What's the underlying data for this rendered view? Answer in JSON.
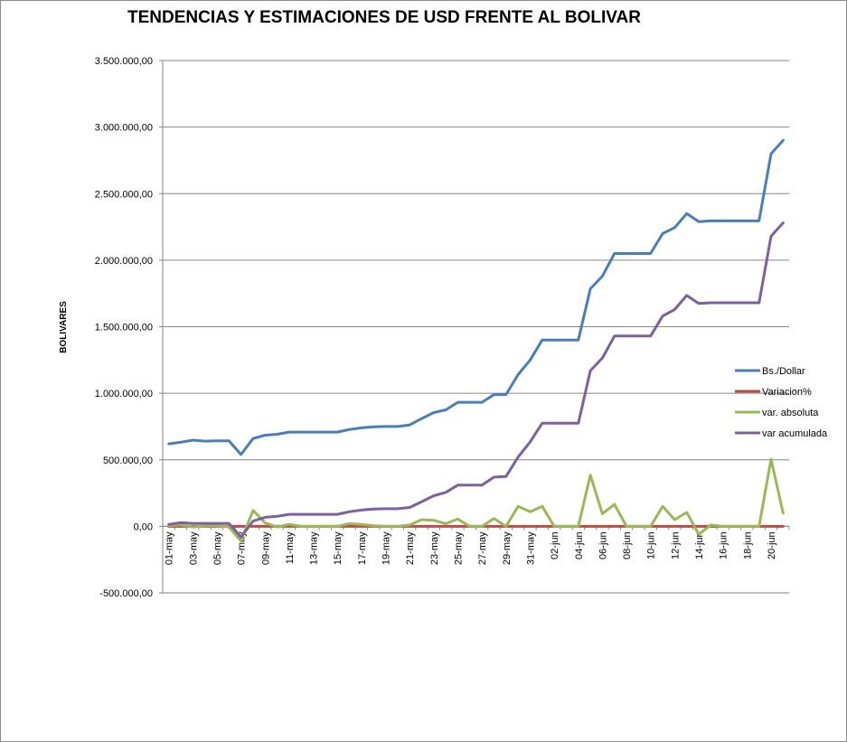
{
  "chart_data": {
    "type": "line",
    "title": "TENDENCIAS Y ESTIMACIONES DE  USD FRENTE AL BOLIVAR",
    "ylabel": "BOLIVARES",
    "ylim": [
      -500000,
      3500000
    ],
    "ytick_values": [
      -500000,
      0,
      500000,
      1000000,
      1500000,
      2000000,
      2500000,
      3000000,
      3500000
    ],
    "ytick_labels": [
      "-500.000,00",
      "0,00",
      "500.000,00",
      "1.000.000,00",
      "1.500.000,00",
      "2.000.000,00",
      "2.500.000,00",
      "3.000.000,00",
      "3.500.000,00"
    ],
    "grid": true,
    "legend_position": "right",
    "categories": [
      "01-may",
      "02-may",
      "03-may",
      "04-may",
      "05-may",
      "06-may",
      "07-may",
      "08-may",
      "09-may",
      "10-may",
      "11-may",
      "12-may",
      "13-may",
      "14-may",
      "15-may",
      "16-may",
      "17-may",
      "18-may",
      "19-may",
      "20-may",
      "21-may",
      "22-may",
      "23-may",
      "24-may",
      "25-may",
      "26-may",
      "27-may",
      "28-may",
      "29-may",
      "30-may",
      "31-may",
      "01-jun",
      "02-jun",
      "03-jun",
      "04-jun",
      "05-jun",
      "06-jun",
      "07-jun",
      "08-jun",
      "09-jun",
      "10-jun",
      "11-jun",
      "12-jun",
      "13-jun",
      "14-jun",
      "15-jun",
      "16-jun",
      "17-jun",
      "18-jun",
      "19-jun",
      "20-jun",
      "21-jun"
    ],
    "tick_labels": [
      "01-may",
      "03-may",
      "05-may",
      "07-may",
      "09-may",
      "11-may",
      "13-may",
      "15-may",
      "17-may",
      "19-may",
      "21-may",
      "23-may",
      "25-may",
      "27-may",
      "29-may",
      "31-may",
      "02-jun",
      "04-jun",
      "06-jun",
      "08-jun",
      "10-jun",
      "12-jun",
      "14-jun",
      "16-jun",
      "18-jun",
      "20-jun"
    ],
    "series": [
      {
        "name": "Bs./Dollar",
        "color": "#4a7ebb",
        "values": [
          620000,
          632000,
          648000,
          640000,
          642000,
          642000,
          540000,
          660000,
          685000,
          692000,
          708000,
          708000,
          708000,
          708000,
          708000,
          728000,
          740000,
          748000,
          750000,
          750000,
          762000,
          810000,
          855000,
          875000,
          932000,
          932000,
          932000,
          990000,
          990000,
          1140000,
          1250000,
          1400000,
          1400000,
          1400000,
          1400000,
          1785000,
          1880000,
          2050000,
          2050000,
          2050000,
          2050000,
          2200000,
          2245000,
          2350000,
          2290000,
          2295000,
          2295000,
          2295000,
          2295000,
          2295000,
          2800000,
          2900000
        ]
      },
      {
        "name": "Variacion%",
        "color": "#be4b48",
        "values": [
          0,
          0,
          0,
          0,
          0,
          0,
          0,
          0,
          0,
          0,
          0,
          0,
          0,
          0,
          0,
          0,
          0,
          0,
          0,
          0,
          0,
          0,
          0,
          0,
          0,
          0,
          0,
          0,
          0,
          0,
          0,
          0,
          0,
          0,
          0,
          0,
          0,
          0,
          0,
          0,
          0,
          0,
          0,
          0,
          0,
          0,
          0,
          0,
          0,
          0,
          0,
          0
        ]
      },
      {
        "name": "var. absoluta",
        "color": "#98b954",
        "values": [
          5000,
          12000,
          -5000,
          3000,
          5000,
          -5000,
          -110000,
          120000,
          25000,
          -5000,
          15000,
          0,
          0,
          0,
          0,
          20000,
          15000,
          5000,
          0,
          0,
          10000,
          50000,
          45000,
          20000,
          55000,
          0,
          0,
          58000,
          0,
          150000,
          110000,
          150000,
          0,
          0,
          0,
          385000,
          95000,
          165000,
          0,
          0,
          0,
          150000,
          50000,
          105000,
          -60000,
          10000,
          0,
          0,
          0,
          0,
          505000,
          100000
        ]
      },
      {
        "name": "var acumulada",
        "color": "#7d60a0",
        "values": [
          15000,
          28000,
          22000,
          22000,
          22000,
          22000,
          -80000,
          40000,
          68000,
          75000,
          90000,
          90000,
          90000,
          90000,
          90000,
          110000,
          122000,
          130000,
          132000,
          132000,
          142000,
          185000,
          230000,
          255000,
          310000,
          310000,
          310000,
          370000,
          375000,
          520000,
          635000,
          775000,
          775000,
          775000,
          775000,
          1170000,
          1265000,
          1430000,
          1430000,
          1430000,
          1430000,
          1580000,
          1630000,
          1735000,
          1675000,
          1680000,
          1680000,
          1680000,
          1680000,
          1680000,
          2180000,
          2280000
        ]
      }
    ]
  }
}
